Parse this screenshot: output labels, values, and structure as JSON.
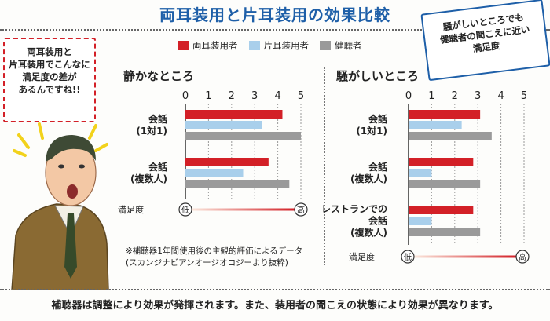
{
  "title": "両耳装用と片耳装用の効果比較",
  "bubble_left": [
    "両耳装用と",
    "片耳装用でこんなに",
    "満足度の差が",
    "あるんですね!!"
  ],
  "bubble_right": [
    "騒がしいところでも",
    "健聴者の聞こえに近い",
    "満足度"
  ],
  "legend": [
    {
      "name": "両耳装用者",
      "color": "#d32027"
    },
    {
      "name": "片耳装用者",
      "color": "#a9cfeb"
    },
    {
      "name": "健聴者",
      "color": "#9a9a9a"
    }
  ],
  "chart_data": [
    {
      "type": "bar",
      "orientation": "horizontal",
      "title": "静かなところ",
      "xlim": [
        0,
        5
      ],
      "ticks": [
        "0",
        "1",
        "2",
        "3",
        "4",
        "5"
      ],
      "categories": [
        [
          "会話",
          "(1対1)"
        ],
        [
          "会話",
          "(複数人)"
        ]
      ],
      "series": [
        {
          "name": "両耳装用者",
          "values": [
            4.2,
            3.6
          ]
        },
        {
          "name": "片耳装用者",
          "values": [
            3.3,
            2.5
          ]
        },
        {
          "name": "健聴者",
          "values": [
            5.0,
            4.5
          ]
        }
      ],
      "scale_label": "満足度",
      "scale_low": "低",
      "scale_high": "高"
    },
    {
      "type": "bar",
      "orientation": "horizontal",
      "title": "騒がしいところ",
      "xlim": [
        0,
        5
      ],
      "ticks": [
        "0",
        "1",
        "2",
        "3",
        "4",
        "5"
      ],
      "categories": [
        [
          "会話",
          "(1対1)"
        ],
        [
          "会話",
          "(複数人)"
        ],
        [
          "レストランでの",
          "会話",
          "(複数人)"
        ]
      ],
      "series": [
        {
          "name": "両耳装用者",
          "values": [
            3.1,
            2.8,
            2.8
          ]
        },
        {
          "name": "片耳装用者",
          "values": [
            2.3,
            1.0,
            1.0
          ]
        },
        {
          "name": "健聴者",
          "values": [
            3.6,
            3.1,
            3.1
          ]
        }
      ],
      "scale_label": "満足度",
      "scale_low": "低",
      "scale_high": "高"
    }
  ],
  "note": [
    "※補聴器1年間使用後の主観的評価によるデータ",
    "(スカンジナビアンオージオロジーより抜粋)"
  ],
  "footer": "補聴器は調整により効果が発揮されます。また、装用者の聞こえの状態により効果が異なります。",
  "colors": {
    "accent_blue": "#1e5fa8",
    "bubble_red_border": "#d32027"
  }
}
